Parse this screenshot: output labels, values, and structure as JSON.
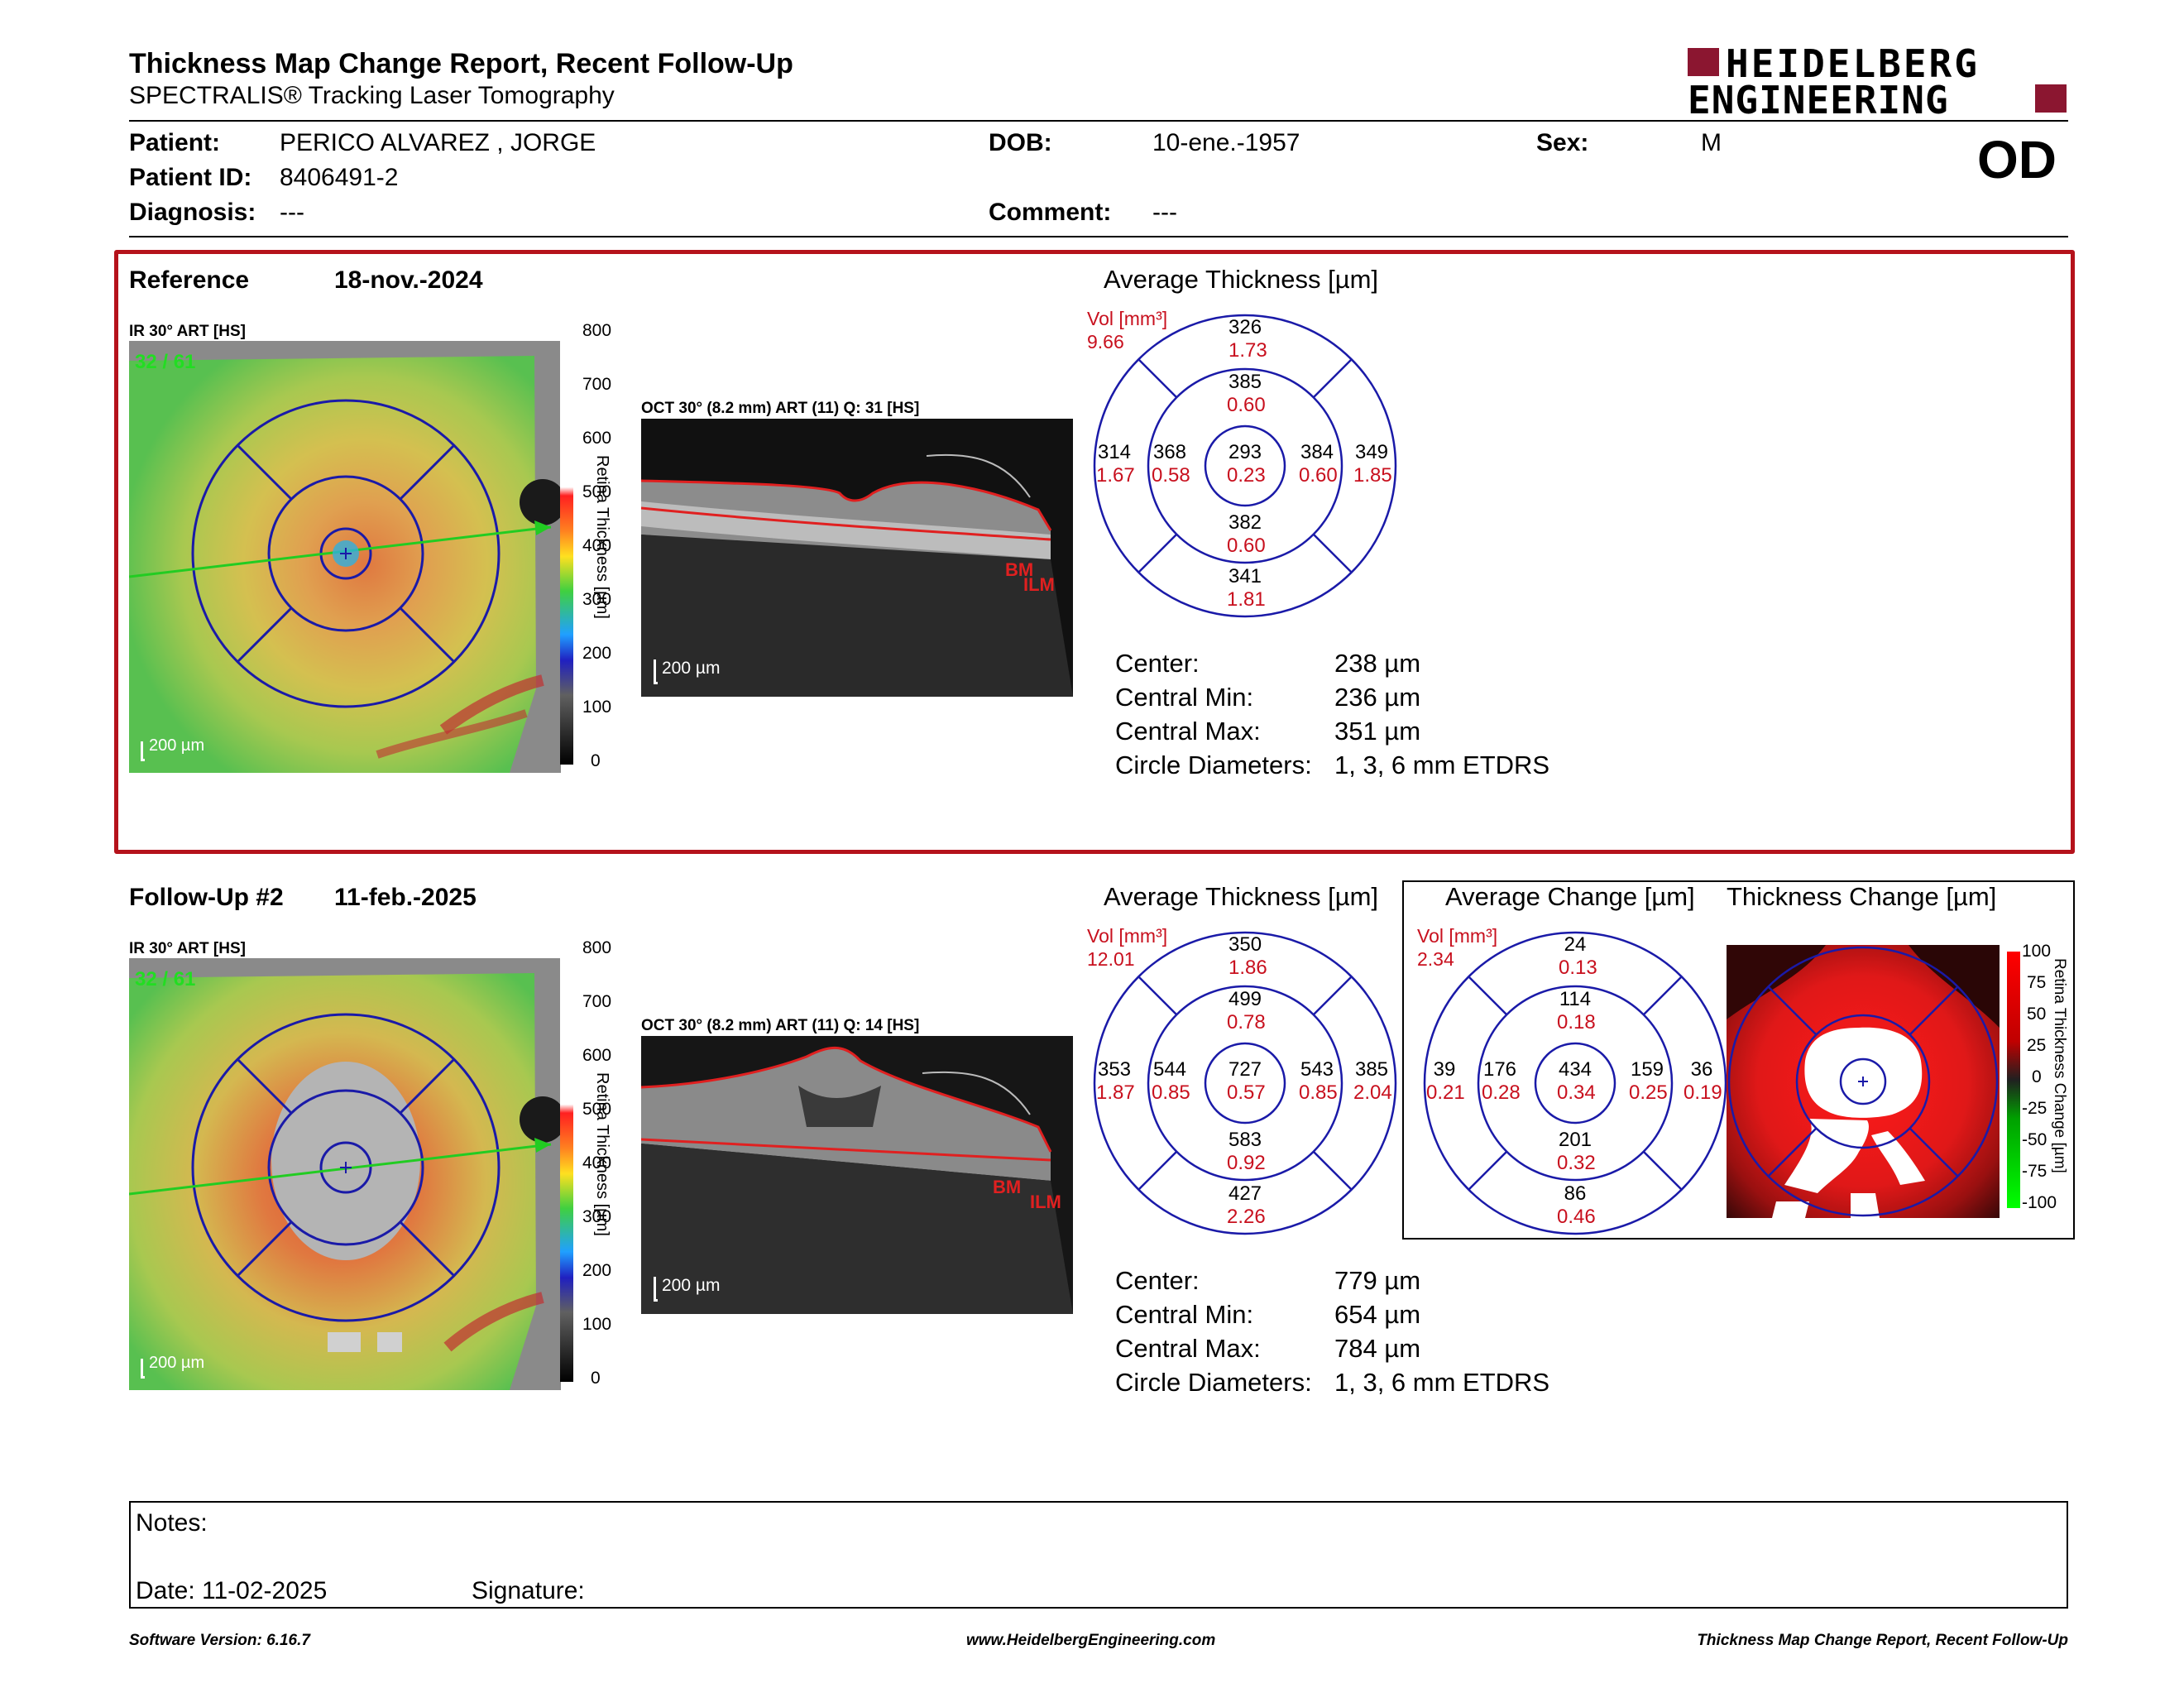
{
  "header": {
    "title": "Thickness Map Change Report, Recent Follow-Up",
    "subtitle": "SPECTRALIS® Tracking Laser Tomography",
    "logo_line1": "HEIDELBERG",
    "logo_line2": "ENGINEERING",
    "eye": "OD"
  },
  "patient": {
    "patient_label": "Patient:",
    "patient_value": "PERICO ALVAREZ , JORGE",
    "id_label": "Patient ID:",
    "id_value": "8406491-2",
    "diagnosis_label": "Diagnosis:",
    "diagnosis_value": "---",
    "dob_label": "DOB:",
    "dob_value": "10-ene.-1957",
    "comment_label": "Comment:",
    "comment_value": "---",
    "sex_label": "Sex:",
    "sex_value": "M"
  },
  "reference": {
    "label": "Reference",
    "date": "18-nov.-2024",
    "ir_label": "IR 30° ART [HS]",
    "frame": "32 / 61",
    "scale_label": "200 µm",
    "oct_label": "OCT 30° (8.2 mm) ART (11) Q: 31 [HS]",
    "oct_scale": "200 µm",
    "avg_title": "Average Thickness [µm]",
    "vol_label": "Vol [mm³]",
    "vol_total": "9.66",
    "grid": {
      "center": [
        "293",
        "0.23"
      ],
      "inner_sup": [
        "385",
        "0.60"
      ],
      "inner_inf": [
        "382",
        "0.60"
      ],
      "inner_nas": [
        "384",
        "0.60"
      ],
      "inner_tem": [
        "368",
        "0.58"
      ],
      "outer_sup": [
        "326",
        "1.73"
      ],
      "outer_inf": [
        "341",
        "1.81"
      ],
      "outer_nas": [
        "349",
        "1.85"
      ],
      "outer_tem": [
        "314",
        "1.67"
      ]
    },
    "stats": [
      {
        "label": "Center:",
        "value": "238 µm"
      },
      {
        "label": "Central Min:",
        "value": "236 µm"
      },
      {
        "label": "Central Max:",
        "value": "351 µm"
      },
      {
        "label": "Circle Diameters:",
        "value": "1, 3, 6 mm ETDRS"
      }
    ]
  },
  "followup": {
    "label": "Follow-Up #2",
    "date": "11-feb.-2025",
    "ir_label": "IR 30° ART [HS]",
    "frame": "32 / 61",
    "scale_label": "200 µm",
    "oct_label": "OCT 30° (8.2 mm) ART (11) Q: 14 [HS]",
    "oct_scale": "200 µm",
    "avg_title": "Average Thickness [µm]",
    "vol_label": "Vol [mm³]",
    "vol_total": "12.01",
    "grid": {
      "center": [
        "727",
        "0.57"
      ],
      "inner_sup": [
        "499",
        "0.78"
      ],
      "inner_inf": [
        "583",
        "0.92"
      ],
      "inner_nas": [
        "543",
        "0.85"
      ],
      "inner_tem": [
        "544",
        "0.85"
      ],
      "outer_sup": [
        "350",
        "1.86"
      ],
      "outer_inf": [
        "427",
        "2.26"
      ],
      "outer_nas": [
        "385",
        "2.04"
      ],
      "outer_tem": [
        "353",
        "1.87"
      ]
    },
    "stats": [
      {
        "label": "Center:",
        "value": "779 µm"
      },
      {
        "label": "Central Min:",
        "value": "654 µm"
      },
      {
        "label": "Central Max:",
        "value": "784 µm"
      },
      {
        "label": "Circle Diameters:",
        "value": "1, 3, 6 mm ETDRS"
      }
    ]
  },
  "change": {
    "avg_title": "Average Change [µm]",
    "map_title": "Thickness Change [µm]",
    "vol_label": "Vol [mm³]",
    "vol_total": "2.34",
    "grid": {
      "center": [
        "434",
        "0.34"
      ],
      "inner_sup": [
        "114",
        "0.18"
      ],
      "inner_inf": [
        "201",
        "0.32"
      ],
      "inner_nas": [
        "159",
        "0.25"
      ],
      "inner_tem": [
        "176",
        "0.28"
      ],
      "outer_sup": [
        "24",
        "0.13"
      ],
      "outer_inf": [
        "86",
        "0.46"
      ],
      "outer_nas": [
        "36",
        "0.19"
      ],
      "outer_tem": [
        "39",
        "0.21"
      ]
    },
    "scale_title": "Retina Thickness Change [µm]",
    "scale_ticks": [
      "100",
      "75",
      "50",
      "25",
      "0",
      "-25",
      "-50",
      "-75",
      "-100"
    ]
  },
  "thickness_scale": {
    "title": "Retina Thickness [µm]",
    "ticks": [
      "800",
      "700",
      "600",
      "500",
      "400",
      "300",
      "200",
      "100",
      "0"
    ]
  },
  "oct_markers": {
    "bm": "BM",
    "ilm": "ILM"
  },
  "notes": {
    "notes_label": "Notes:",
    "date_label": "Date: 11-02-2025",
    "signature_label": "Signature:"
  },
  "footer": {
    "left": "Software Version: 6.16.7",
    "center": "www.HeidelbergEngineering.com",
    "right": "Thickness Map Change Report, Recent Follow-Up"
  },
  "colors": {
    "accent_red": "#c8101e",
    "frame_red": "#b5121b",
    "logo_red": "#8b1630",
    "grid_blue": "#1a1aa8",
    "green_arrow": "#22cc22"
  }
}
